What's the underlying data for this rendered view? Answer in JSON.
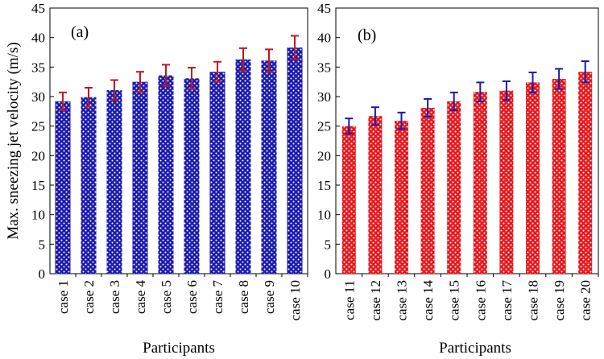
{
  "chart_data": [
    {
      "type": "bar",
      "panel_label": "(a)",
      "title": "",
      "xlabel": "Participants",
      "ylabel": "Max. sneezing jet velocity (m/s)",
      "ylim": [
        0,
        45
      ],
      "yticks": [
        "0",
        "5",
        "10",
        "15",
        "20",
        "25",
        "30",
        "35",
        "40",
        "45"
      ],
      "categories": [
        "case 1",
        "case 2",
        "case 3",
        "case 4",
        "case 5",
        "case 6",
        "case 7",
        "case 8",
        "case 9",
        "case 10"
      ],
      "values": [
        29.2,
        29.9,
        31.1,
        32.5,
        33.6,
        33.1,
        34.2,
        36.3,
        36.1,
        38.3
      ],
      "errors": [
        1.5,
        1.6,
        1.7,
        1.7,
        1.8,
        1.8,
        1.7,
        1.9,
        1.9,
        2.0
      ],
      "bar_color": "#1a1aad",
      "error_color": "#c0171f",
      "grid": false
    },
    {
      "type": "bar",
      "panel_label": "(b)",
      "title": "",
      "xlabel": "Participants",
      "ylabel": "",
      "ylim": [
        0,
        45
      ],
      "yticks": [
        "0",
        "5",
        "10",
        "15",
        "20",
        "25",
        "30",
        "35",
        "40",
        "45"
      ],
      "categories": [
        "case 11",
        "case 12",
        "case 13",
        "case 14",
        "case 15",
        "case 16",
        "case 17",
        "case 18",
        "case 19",
        "case 20"
      ],
      "values": [
        25.0,
        26.7,
        25.9,
        28.1,
        29.2,
        30.8,
        31.0,
        32.4,
        33.0,
        34.2
      ],
      "errors": [
        1.3,
        1.5,
        1.4,
        1.5,
        1.5,
        1.6,
        1.6,
        1.7,
        1.7,
        1.8
      ],
      "bar_color": "#e8171c",
      "error_color": "#1a1aad",
      "grid": false
    }
  ]
}
